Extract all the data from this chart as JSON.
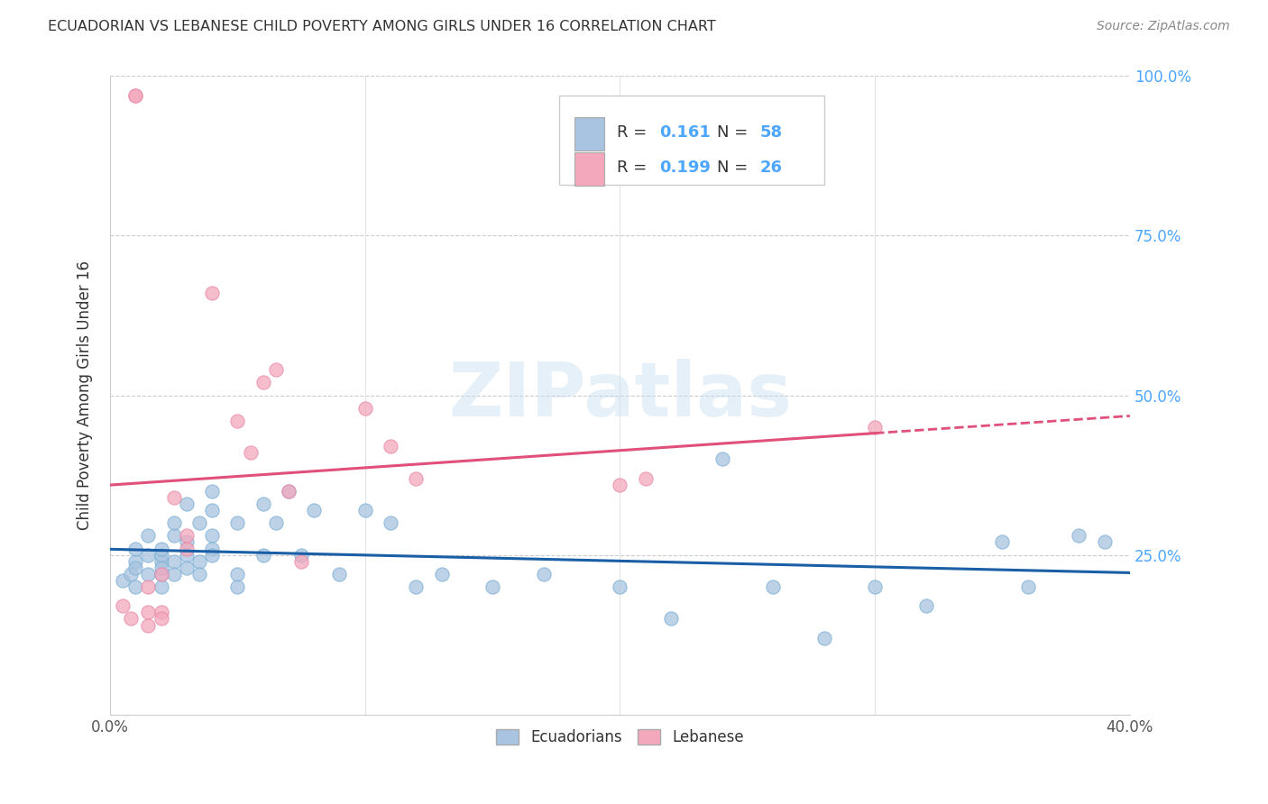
{
  "title": "ECUADORIAN VS LEBANESE CHILD POVERTY AMONG GIRLS UNDER 16 CORRELATION CHART",
  "source": "Source: ZipAtlas.com",
  "ylabel": "Child Poverty Among Girls Under 16",
  "xlim": [
    0.0,
    0.4
  ],
  "ylim": [
    0.0,
    1.0
  ],
  "r_ecuador": 0.161,
  "n_ecuador": 58,
  "r_lebanon": 0.199,
  "n_lebanon": 26,
  "ecuador_color": "#a8c4e0",
  "ecuador_edge_color": "#7aafd4",
  "lebanon_color": "#f4a8bc",
  "lebanon_edge_color": "#e888a8",
  "ecuador_line_color": "#1a5fa6",
  "lebanon_line_color": "#e0507a",
  "legend_label_ecuador": "Ecuadorians",
  "legend_label_lebanon": "Lebanese",
  "text_color": "#333333",
  "axis_color": "#cccccc",
  "right_tick_color": "#4da6ff",
  "ecuador_x": [
    0.005,
    0.008,
    0.01,
    0.01,
    0.01,
    0.01,
    0.015,
    0.015,
    0.015,
    0.02,
    0.02,
    0.02,
    0.02,
    0.02,
    0.02,
    0.025,
    0.025,
    0.025,
    0.025,
    0.03,
    0.03,
    0.03,
    0.03,
    0.035,
    0.035,
    0.035,
    0.04,
    0.04,
    0.04,
    0.04,
    0.04,
    0.05,
    0.05,
    0.05,
    0.06,
    0.06,
    0.065,
    0.07,
    0.075,
    0.08,
    0.09,
    0.1,
    0.11,
    0.12,
    0.13,
    0.15,
    0.17,
    0.2,
    0.22,
    0.24,
    0.26,
    0.28,
    0.3,
    0.32,
    0.35,
    0.36,
    0.38,
    0.39
  ],
  "ecuador_y": [
    0.21,
    0.22,
    0.24,
    0.26,
    0.2,
    0.23,
    0.25,
    0.22,
    0.28,
    0.24,
    0.25,
    0.22,
    0.26,
    0.23,
    0.2,
    0.28,
    0.24,
    0.3,
    0.22,
    0.25,
    0.23,
    0.27,
    0.33,
    0.24,
    0.3,
    0.22,
    0.28,
    0.32,
    0.26,
    0.35,
    0.25,
    0.3,
    0.22,
    0.2,
    0.33,
    0.25,
    0.3,
    0.35,
    0.25,
    0.32,
    0.22,
    0.32,
    0.3,
    0.2,
    0.22,
    0.2,
    0.22,
    0.2,
    0.15,
    0.4,
    0.2,
    0.12,
    0.2,
    0.17,
    0.27,
    0.2,
    0.28,
    0.27
  ],
  "lebanon_x": [
    0.005,
    0.008,
    0.01,
    0.01,
    0.015,
    0.015,
    0.015,
    0.02,
    0.02,
    0.02,
    0.025,
    0.03,
    0.03,
    0.04,
    0.05,
    0.055,
    0.06,
    0.065,
    0.07,
    0.075,
    0.1,
    0.11,
    0.12,
    0.2,
    0.21,
    0.3
  ],
  "lebanon_y": [
    0.17,
    0.15,
    0.97,
    0.97,
    0.2,
    0.16,
    0.14,
    0.22,
    0.16,
    0.15,
    0.34,
    0.28,
    0.26,
    0.66,
    0.46,
    0.41,
    0.52,
    0.54,
    0.35,
    0.24,
    0.48,
    0.42,
    0.37,
    0.36,
    0.37,
    0.45
  ]
}
